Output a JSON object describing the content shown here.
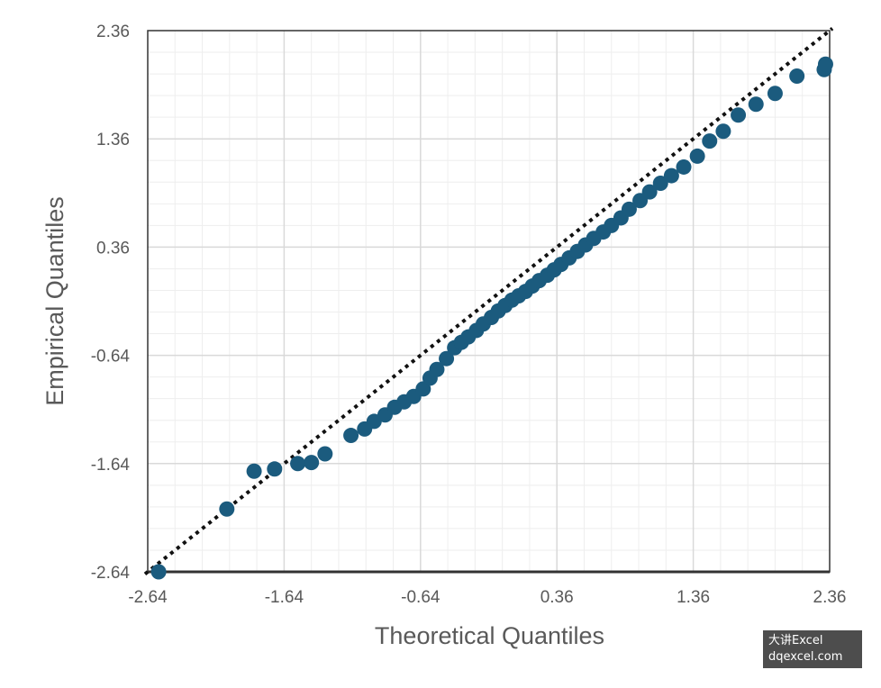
{
  "chart_data": {
    "type": "scatter",
    "title": "",
    "xlabel": "Theoretical Quantiles",
    "ylabel": "Empirical Quantiles",
    "xlim": [
      -2.64,
      2.36
    ],
    "ylim": [
      -2.64,
      2.36
    ],
    "x_ticks": [
      "-2.64",
      "-1.64",
      "-0.64",
      "0.36",
      "1.36",
      "2.36"
    ],
    "y_ticks": [
      "2.36",
      "1.36",
      "0.36",
      "-0.64",
      "-1.64",
      "-2.64"
    ],
    "grid": true,
    "minor_grid": true,
    "colors": {
      "points": "#1b5b7e",
      "reference_line": "#111111",
      "grid_major": "#d9d9d9",
      "grid_minor": "#eeeeee",
      "axis": "#333333"
    },
    "reference_line": {
      "style": "dotted",
      "from": [
        -2.64,
        -2.64
      ],
      "to": [
        2.36,
        2.36
      ]
    },
    "x": [
      -2.56,
      -2.06,
      -1.86,
      -1.71,
      -1.54,
      -1.44,
      -1.34,
      -1.15,
      -1.05,
      -0.98,
      -0.9,
      -0.83,
      -0.76,
      -0.69,
      -0.62,
      -0.57,
      -0.52,
      -0.45,
      -0.39,
      -0.34,
      -0.29,
      -0.23,
      -0.18,
      -0.12,
      -0.07,
      -0.02,
      0.03,
      0.08,
      0.13,
      0.18,
      0.23,
      0.29,
      0.34,
      0.39,
      0.45,
      0.51,
      0.57,
      0.63,
      0.7,
      0.76,
      0.83,
      0.89,
      0.97,
      1.04,
      1.12,
      1.2,
      1.29,
      1.39,
      1.48,
      1.58,
      1.69,
      1.82,
      1.96,
      2.12,
      2.32,
      2.33
    ],
    "y": [
      -2.64,
      -2.06,
      -1.71,
      -1.69,
      -1.64,
      -1.63,
      -1.55,
      -1.38,
      -1.32,
      -1.25,
      -1.19,
      -1.12,
      -1.07,
      -1.02,
      -0.95,
      -0.85,
      -0.77,
      -0.67,
      -0.57,
      -0.52,
      -0.47,
      -0.41,
      -0.35,
      -0.29,
      -0.23,
      -0.18,
      -0.13,
      -0.09,
      -0.05,
      0.0,
      0.05,
      0.1,
      0.15,
      0.2,
      0.26,
      0.32,
      0.38,
      0.44,
      0.5,
      0.56,
      0.63,
      0.71,
      0.79,
      0.87,
      0.95,
      1.02,
      1.1,
      1.2,
      1.34,
      1.43,
      1.58,
      1.68,
      1.78,
      1.94,
      2.0,
      2.05
    ]
  },
  "watermark": {
    "line1": "大讲Excel",
    "line2": "dqexcel.com"
  }
}
